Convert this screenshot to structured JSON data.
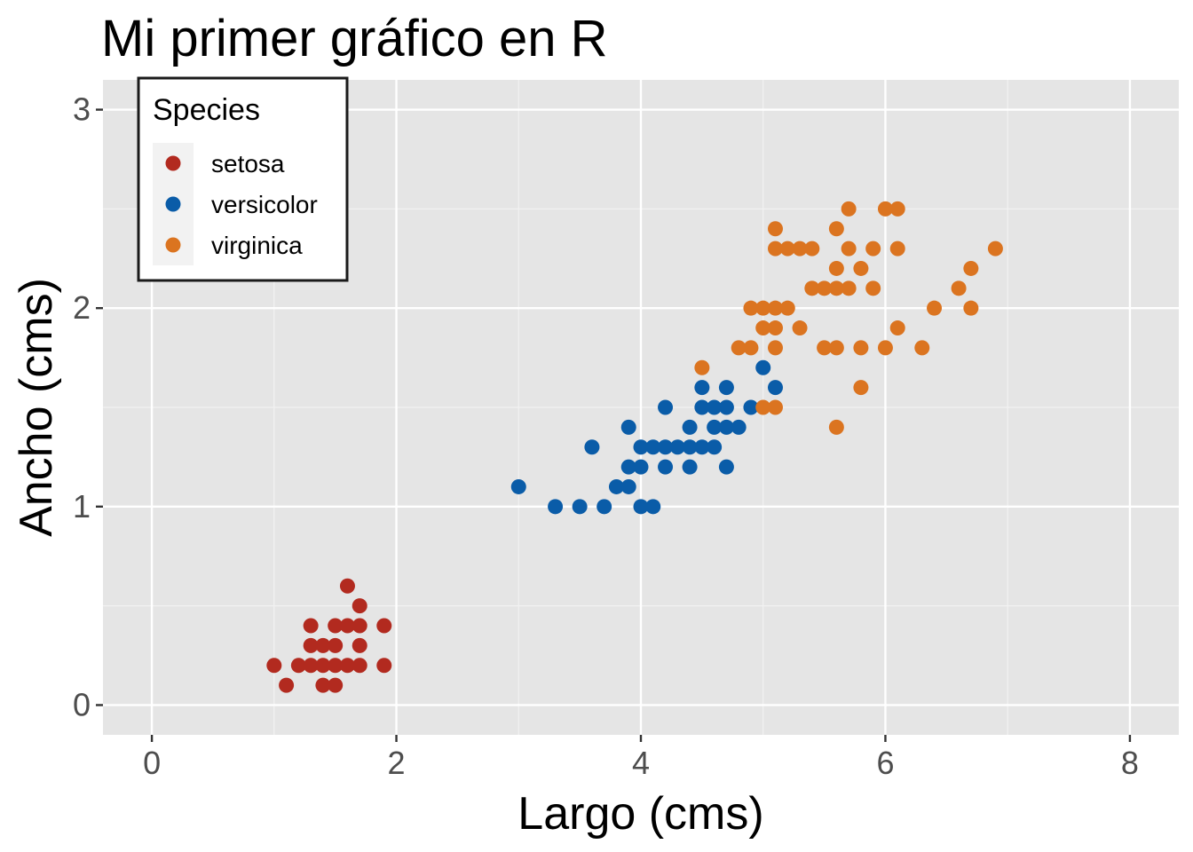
{
  "chart_data": {
    "type": "scatter",
    "title": "Mi primer gráfico en R",
    "xlabel": "Largo (cms)",
    "ylabel": "Ancho (cms)",
    "xlim": [
      -0.4,
      8.4
    ],
    "ylim": [
      -0.15,
      3.15
    ],
    "x_ticks": [
      "0",
      "2",
      "4",
      "6",
      "8"
    ],
    "y_ticks": [
      "0",
      "1",
      "2",
      "3"
    ],
    "grid": true,
    "legend": {
      "title": "Species",
      "position": "top-left"
    },
    "series": [
      {
        "name": "setosa",
        "color": "#B22A1F",
        "points": [
          [
            1.0,
            0.2
          ],
          [
            1.1,
            0.1
          ],
          [
            1.2,
            0.2
          ],
          [
            1.3,
            0.2
          ],
          [
            1.3,
            0.3
          ],
          [
            1.3,
            0.4
          ],
          [
            1.4,
            0.1
          ],
          [
            1.4,
            0.2
          ],
          [
            1.4,
            0.3
          ],
          [
            1.5,
            0.1
          ],
          [
            1.5,
            0.2
          ],
          [
            1.5,
            0.3
          ],
          [
            1.5,
            0.4
          ],
          [
            1.6,
            0.2
          ],
          [
            1.6,
            0.4
          ],
          [
            1.6,
            0.6
          ],
          [
            1.7,
            0.2
          ],
          [
            1.7,
            0.3
          ],
          [
            1.7,
            0.4
          ],
          [
            1.7,
            0.5
          ],
          [
            1.9,
            0.2
          ],
          [
            1.9,
            0.4
          ]
        ]
      },
      {
        "name": "versicolor",
        "color": "#0A5CA8",
        "points": [
          [
            3.0,
            1.1
          ],
          [
            3.3,
            1.0
          ],
          [
            3.5,
            1.0
          ],
          [
            3.6,
            1.3
          ],
          [
            3.7,
            1.0
          ],
          [
            3.8,
            1.1
          ],
          [
            3.9,
            1.1
          ],
          [
            3.9,
            1.2
          ],
          [
            3.9,
            1.4
          ],
          [
            4.0,
            1.0
          ],
          [
            4.0,
            1.2
          ],
          [
            4.0,
            1.3
          ],
          [
            4.1,
            1.0
          ],
          [
            4.1,
            1.3
          ],
          [
            4.2,
            1.2
          ],
          [
            4.2,
            1.3
          ],
          [
            4.2,
            1.5
          ],
          [
            4.3,
            1.3
          ],
          [
            4.4,
            1.2
          ],
          [
            4.4,
            1.3
          ],
          [
            4.4,
            1.4
          ],
          [
            4.5,
            1.3
          ],
          [
            4.5,
            1.5
          ],
          [
            4.5,
            1.6
          ],
          [
            4.6,
            1.3
          ],
          [
            4.6,
            1.4
          ],
          [
            4.6,
            1.5
          ],
          [
            4.7,
            1.2
          ],
          [
            4.7,
            1.4
          ],
          [
            4.7,
            1.5
          ],
          [
            4.7,
            1.6
          ],
          [
            4.8,
            1.4
          ],
          [
            4.9,
            1.5
          ],
          [
            5.0,
            1.7
          ],
          [
            5.1,
            1.6
          ]
        ]
      },
      {
        "name": "virginica",
        "color": "#DB7420",
        "points": [
          [
            4.5,
            1.7
          ],
          [
            4.8,
            1.8
          ],
          [
            4.9,
            1.8
          ],
          [
            4.9,
            2.0
          ],
          [
            5.0,
            1.5
          ],
          [
            5.0,
            1.9
          ],
          [
            5.0,
            2.0
          ],
          [
            5.1,
            1.5
          ],
          [
            5.1,
            1.8
          ],
          [
            5.1,
            1.9
          ],
          [
            5.1,
            2.0
          ],
          [
            5.1,
            2.3
          ],
          [
            5.1,
            2.4
          ],
          [
            5.2,
            2.0
          ],
          [
            5.2,
            2.3
          ],
          [
            5.3,
            1.9
          ],
          [
            5.3,
            2.3
          ],
          [
            5.4,
            2.1
          ],
          [
            5.4,
            2.3
          ],
          [
            5.5,
            1.8
          ],
          [
            5.5,
            2.1
          ],
          [
            5.6,
            1.4
          ],
          [
            5.6,
            1.8
          ],
          [
            5.6,
            2.1
          ],
          [
            5.6,
            2.2
          ],
          [
            5.6,
            2.4
          ],
          [
            5.7,
            2.1
          ],
          [
            5.7,
            2.3
          ],
          [
            5.7,
            2.5
          ],
          [
            5.8,
            1.6
          ],
          [
            5.8,
            1.8
          ],
          [
            5.8,
            2.2
          ],
          [
            5.9,
            2.1
          ],
          [
            5.9,
            2.3
          ],
          [
            6.0,
            1.8
          ],
          [
            6.0,
            2.5
          ],
          [
            6.1,
            1.9
          ],
          [
            6.1,
            2.3
          ],
          [
            6.1,
            2.5
          ],
          [
            6.3,
            1.8
          ],
          [
            6.4,
            2.0
          ],
          [
            6.6,
            2.1
          ],
          [
            6.7,
            2.0
          ],
          [
            6.7,
            2.2
          ],
          [
            6.9,
            2.3
          ]
        ]
      }
    ]
  }
}
